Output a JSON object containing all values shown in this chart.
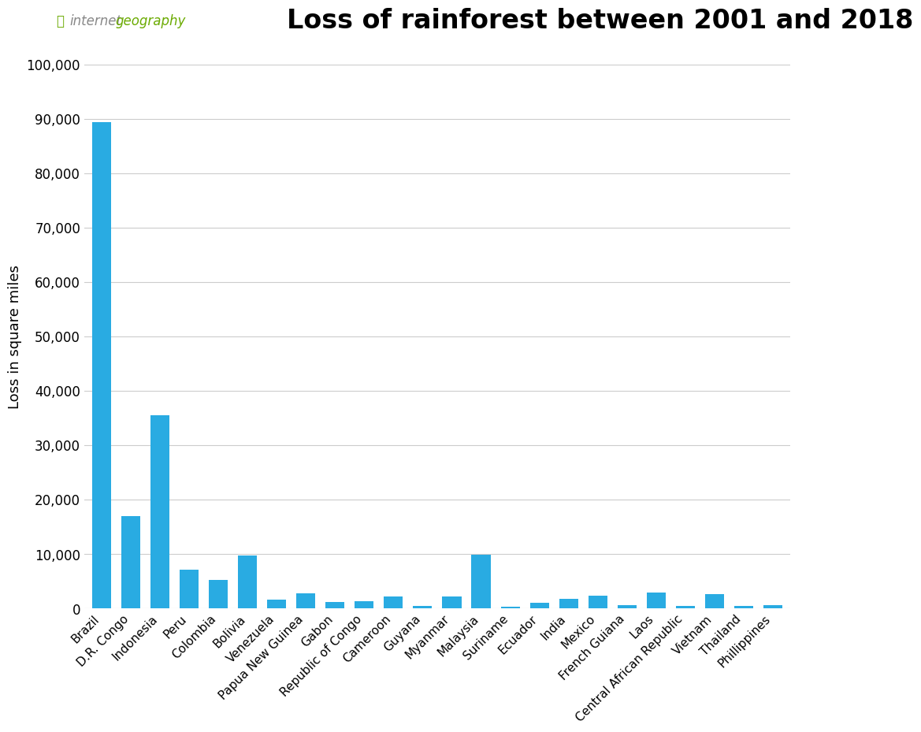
{
  "title": "Loss of rainforest between 2001 and 2018",
  "ylabel": "Loss in square miles",
  "bar_color": "#29ABE2",
  "background_color": "#ffffff",
  "grid_color": "#cccccc",
  "categories": [
    "Brazil",
    "D.R. Congo",
    "Indonesia",
    "Peru",
    "Colombia",
    "Bolivia",
    "Venezuela",
    "Papua New Guinea",
    "Gabon",
    "Republic of Congo",
    "Cameroon",
    "Guyana",
    "Myanmar",
    "Malaysia",
    "Suriname",
    "Ecuador",
    "India",
    "Mexico",
    "French Guiana",
    "Laos",
    "Central African Republic",
    "Vietnam",
    "Thailand",
    "Phillippines"
  ],
  "values": [
    89500,
    17000,
    35500,
    7200,
    5200,
    9700,
    1600,
    2800,
    1200,
    1400,
    2300,
    500,
    2200,
    9900,
    400,
    1100,
    1800,
    2400,
    700,
    2900,
    500,
    2700,
    500,
    700
  ],
  "ylim": [
    0,
    100000
  ],
  "yticks": [
    0,
    10000,
    20000,
    30000,
    40000,
    50000,
    60000,
    70000,
    80000,
    90000,
    100000
  ],
  "logo_color_internet": "#888888",
  "logo_color_geography": "#6aaa00",
  "title_fontsize": 24,
  "ylabel_fontsize": 13,
  "tick_fontsize": 12,
  "xtick_fontsize": 11,
  "logo_fontsize": 12
}
